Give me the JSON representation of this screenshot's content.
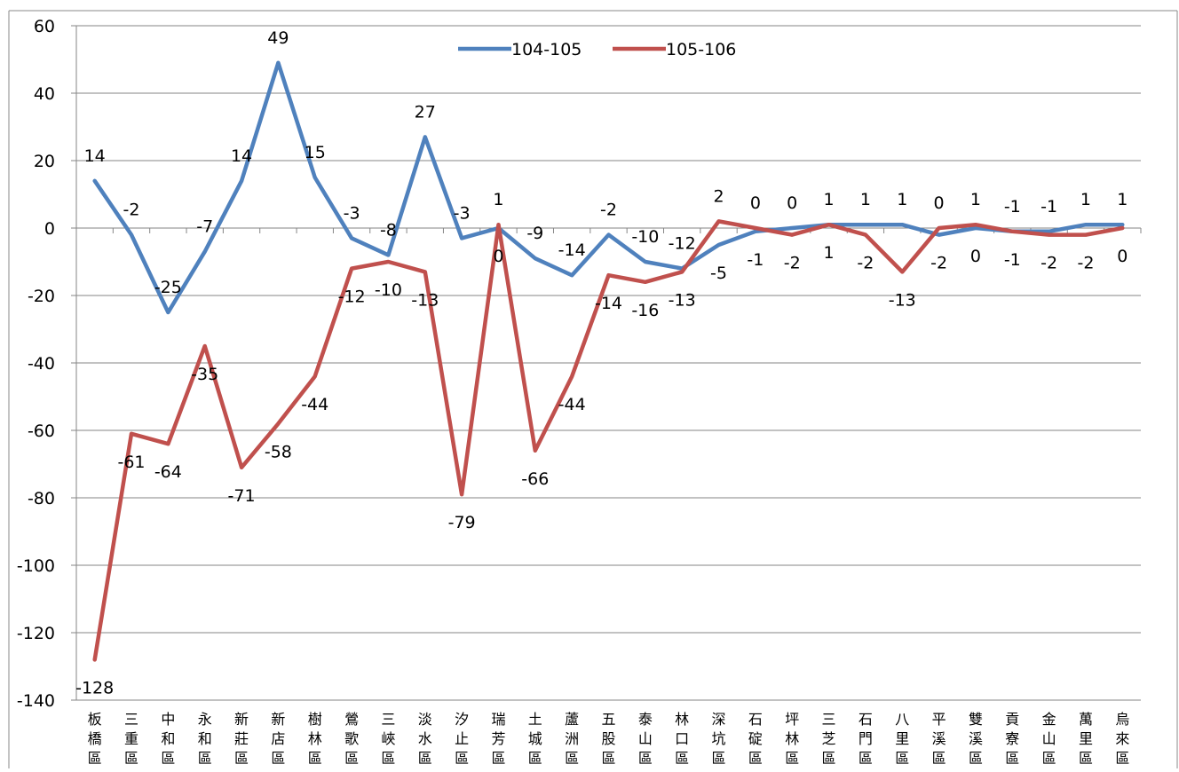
{
  "chart_data": {
    "type": "line",
    "title": "",
    "xlabel": "",
    "ylabel": "",
    "ylim": [
      -140,
      60
    ],
    "yticks": [
      60,
      40,
      20,
      0,
      -20,
      -40,
      -60,
      -80,
      -100,
      -120,
      -140
    ],
    "grid": "horizontal",
    "legend": "top-center",
    "categories": [
      "板橋區",
      "三重區",
      "中和區",
      "永和區",
      "新莊區",
      "新店區",
      "樹林區",
      "鶯歌區",
      "三峽區",
      "淡水區",
      "汐止區",
      "瑞芳區",
      "土城區",
      "蘆洲區",
      "五股區",
      "泰山區",
      "林口區",
      "深坑區",
      "石碇區",
      "坪林區",
      "三芝區",
      "石門區",
      "八里區",
      "平溪區",
      "雙溪區",
      "貢寮區",
      "金山區",
      "萬里區",
      "烏來區"
    ],
    "series": [
      {
        "name": "104-105",
        "color": "#4F81BD",
        "values": [
          14,
          -2,
          -25,
          -7,
          14,
          49,
          15,
          -3,
          -8,
          27,
          -3,
          0,
          -9,
          -14,
          -2,
          -10,
          -12,
          -5,
          -1,
          0,
          1,
          1,
          1,
          -2,
          0,
          -1,
          -1,
          1,
          1
        ]
      },
      {
        "name": "105-106",
        "color": "#C0504D",
        "values": [
          -128,
          -61,
          -64,
          -35,
          -71,
          -58,
          -44,
          -12,
          -10,
          -13,
          -79,
          1,
          -66,
          -44,
          -14,
          -16,
          -13,
          2,
          0,
          -2,
          1,
          -2,
          -13,
          0,
          1,
          -1,
          -2,
          -2,
          0
        ]
      }
    ]
  }
}
